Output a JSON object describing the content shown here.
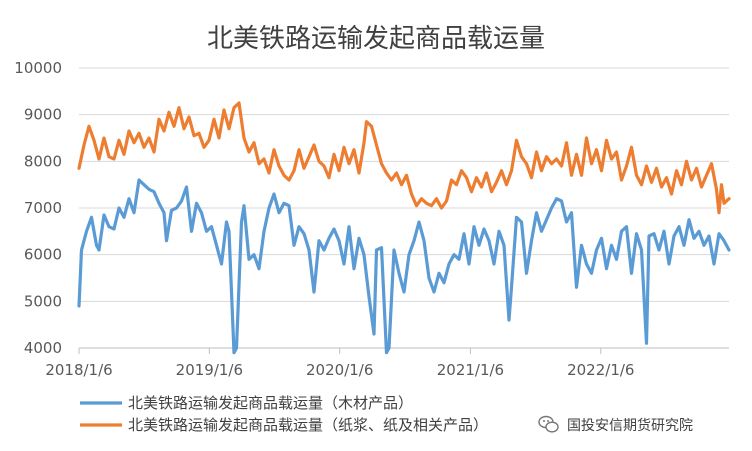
{
  "chart_data": {
    "type": "line",
    "title": "北美铁路运输发起商品载运量",
    "x_ticks": [
      "2018/1/6",
      "2019/1/6",
      "2020/1/6",
      "2021/1/6",
      "2022/1/6"
    ],
    "y_ticks": [
      "10000",
      "9000",
      "8000",
      "7000",
      "6000",
      "5000",
      "4000"
    ],
    "ylim": [
      4000,
      10000
    ],
    "xlim": [
      "2018/1/6",
      "2022/12/31"
    ],
    "grid": true,
    "legend_position": "bottom",
    "series": [
      {
        "name": "北美铁路运输发起商品载运量（木材产品）",
        "color": "#5b9bd5",
        "points": [
          [
            "2018/1/6",
            4900
          ],
          [
            "2018/1/13",
            6100
          ],
          [
            "2018/1/27",
            6500
          ],
          [
            "2018/2/10",
            6800
          ],
          [
            "2018/2/24",
            6200
          ],
          [
            "2018/3/3",
            6100
          ],
          [
            "2018/3/17",
            6850
          ],
          [
            "2018/3/31",
            6600
          ],
          [
            "2018/4/14",
            6550
          ],
          [
            "2018/4/28",
            7000
          ],
          [
            "2018/5/12",
            6800
          ],
          [
            "2018/5/26",
            7200
          ],
          [
            "2018/6/9",
            6900
          ],
          [
            "2018/6/23",
            7600
          ],
          [
            "2018/7/7",
            7500
          ],
          [
            "2018/7/21",
            7400
          ],
          [
            "2018/8/4",
            7350
          ],
          [
            "2018/8/18",
            7100
          ],
          [
            "2018/9/1",
            6900
          ],
          [
            "2018/9/8",
            6300
          ],
          [
            "2018/9/22",
            6950
          ],
          [
            "2018/10/6",
            7000
          ],
          [
            "2018/10/20",
            7150
          ],
          [
            "2018/11/3",
            7450
          ],
          [
            "2018/11/17",
            6500
          ],
          [
            "2018/12/1",
            7100
          ],
          [
            "2018/12/15",
            6900
          ],
          [
            "2018/12/29",
            6500
          ],
          [
            "2019/1/12",
            6600
          ],
          [
            "2019/1/26",
            6200
          ],
          [
            "2019/2/9",
            5800
          ],
          [
            "2019/2/23",
            6700
          ],
          [
            "2019/3/2",
            6500
          ],
          [
            "2019/3/16",
            3900
          ],
          [
            "2019/3/23",
            4000
          ],
          [
            "2019/4/6",
            6700
          ],
          [
            "2019/4/13",
            7050
          ],
          [
            "2019/4/27",
            5900
          ],
          [
            "2019/5/11",
            6000
          ],
          [
            "2019/5/25",
            5700
          ],
          [
            "2019/6/8",
            6500
          ],
          [
            "2019/6/22",
            7000
          ],
          [
            "2019/7/6",
            7300
          ],
          [
            "2019/7/20",
            6900
          ],
          [
            "2019/8/3",
            7100
          ],
          [
            "2019/8/17",
            7050
          ],
          [
            "2019/8/31",
            6200
          ],
          [
            "2019/9/14",
            6600
          ],
          [
            "2019/9/28",
            6450
          ],
          [
            "2019/10/12",
            6100
          ],
          [
            "2019/10/26",
            5200
          ],
          [
            "2019/11/9",
            6300
          ],
          [
            "2019/11/23",
            6100
          ],
          [
            "2019/12/7",
            6350
          ],
          [
            "2019/12/21",
            6550
          ],
          [
            "2020/1/4",
            6300
          ],
          [
            "2020/1/18",
            5800
          ],
          [
            "2020/2/1",
            6600
          ],
          [
            "2020/2/15",
            5700
          ],
          [
            "2020/2/29",
            6350
          ],
          [
            "2020/3/14",
            6000
          ],
          [
            "2020/3/28",
            5100
          ],
          [
            "2020/4/11",
            4300
          ],
          [
            "2020/4/18",
            6100
          ],
          [
            "2020/5/2",
            6150
          ],
          [
            "2020/5/16",
            3900
          ],
          [
            "2020/5/23",
            4000
          ],
          [
            "2020/6/6",
            6100
          ],
          [
            "2020/6/20",
            5600
          ],
          [
            "2020/7/4",
            5200
          ],
          [
            "2020/7/18",
            6000
          ],
          [
            "2020/8/1",
            6300
          ],
          [
            "2020/8/15",
            6700
          ],
          [
            "2020/8/29",
            6300
          ],
          [
            "2020/9/12",
            5500
          ],
          [
            "2020/9/26",
            5200
          ],
          [
            "2020/10/10",
            5600
          ],
          [
            "2020/10/24",
            5400
          ],
          [
            "2020/11/7",
            5800
          ],
          [
            "2020/11/21",
            6000
          ],
          [
            "2020/12/5",
            5900
          ],
          [
            "2020/12/19",
            6450
          ],
          [
            "2021/1/2",
            5800
          ],
          [
            "2021/1/16",
            6600
          ],
          [
            "2021/1/30",
            6200
          ],
          [
            "2021/2/13",
            6550
          ],
          [
            "2021/2/27",
            6300
          ],
          [
            "2021/3/13",
            5800
          ],
          [
            "2021/3/27",
            6500
          ],
          [
            "2021/4/10",
            6200
          ],
          [
            "2021/4/24",
            4600
          ],
          [
            "2021/5/1",
            5300
          ],
          [
            "2021/5/15",
            6800
          ],
          [
            "2021/5/29",
            6700
          ],
          [
            "2021/6/12",
            5600
          ],
          [
            "2021/6/26",
            6300
          ],
          [
            "2021/7/10",
            6900
          ],
          [
            "2021/7/24",
            6500
          ],
          [
            "2021/8/7",
            6750
          ],
          [
            "2021/8/21",
            7000
          ],
          [
            "2021/9/4",
            7200
          ],
          [
            "2021/9/18",
            7150
          ],
          [
            "2021/10/2",
            6700
          ],
          [
            "2021/10/16",
            6900
          ],
          [
            "2021/10/30",
            5300
          ],
          [
            "2021/11/13",
            6200
          ],
          [
            "2021/11/27",
            5800
          ],
          [
            "2021/12/11",
            5600
          ],
          [
            "2021/12/25",
            6100
          ],
          [
            "2022/1/8",
            6350
          ],
          [
            "2022/1/22",
            5700
          ],
          [
            "2022/2/5",
            6200
          ],
          [
            "2022/2/19",
            5900
          ],
          [
            "2022/3/5",
            6500
          ],
          [
            "2022/3/19",
            6600
          ],
          [
            "2022/4/2",
            5600
          ],
          [
            "2022/4/16",
            6450
          ],
          [
            "2022/4/30",
            6100
          ],
          [
            "2022/5/14",
            4100
          ],
          [
            "2022/5/21",
            6400
          ],
          [
            "2022/6/4",
            6450
          ],
          [
            "2022/6/18",
            6100
          ],
          [
            "2022/7/2",
            6500
          ],
          [
            "2022/7/16",
            5800
          ],
          [
            "2022/7/30",
            6400
          ],
          [
            "2022/8/13",
            6600
          ],
          [
            "2022/8/27",
            6200
          ],
          [
            "2022/9/10",
            6750
          ],
          [
            "2022/9/24",
            6350
          ],
          [
            "2022/10/8",
            6500
          ],
          [
            "2022/10/22",
            6200
          ],
          [
            "2022/11/5",
            6400
          ],
          [
            "2022/11/19",
            5800
          ],
          [
            "2022/12/3",
            6450
          ],
          [
            "2022/12/17",
            6300
          ],
          [
            "2022/12/31",
            6100
          ]
        ]
      },
      {
        "name": "北美铁路运输发起商品载运量（纸浆、纸及相关产品）",
        "color": "#ed7d31",
        "points": [
          [
            "2018/1/6",
            7850
          ],
          [
            "2018/1/20",
            8350
          ],
          [
            "2018/2/3",
            8750
          ],
          [
            "2018/2/17",
            8450
          ],
          [
            "2018/3/3",
            8050
          ],
          [
            "2018/3/17",
            8500
          ],
          [
            "2018/3/31",
            8100
          ],
          [
            "2018/4/14",
            8050
          ],
          [
            "2018/4/28",
            8450
          ],
          [
            "2018/5/12",
            8150
          ],
          [
            "2018/5/26",
            8650
          ],
          [
            "2018/6/9",
            8400
          ],
          [
            "2018/6/23",
            8600
          ],
          [
            "2018/7/7",
            8300
          ],
          [
            "2018/7/21",
            8500
          ],
          [
            "2018/8/4",
            8200
          ],
          [
            "2018/8/18",
            8900
          ],
          [
            "2018/9/1",
            8650
          ],
          [
            "2018/9/15",
            9050
          ],
          [
            "2018/9/29",
            8750
          ],
          [
            "2018/10/13",
            9150
          ],
          [
            "2018/10/27",
            8700
          ],
          [
            "2018/11/10",
            8950
          ],
          [
            "2018/11/24",
            8550
          ],
          [
            "2018/12/8",
            8600
          ],
          [
            "2018/12/22",
            8300
          ],
          [
            "2019/1/5",
            8450
          ],
          [
            "2019/1/19",
            8900
          ],
          [
            "2019/2/2",
            8500
          ],
          [
            "2019/2/16",
            9100
          ],
          [
            "2019/3/2",
            8700
          ],
          [
            "2019/3/16",
            9150
          ],
          [
            "2019/3/30",
            9250
          ],
          [
            "2019/4/13",
            8500
          ],
          [
            "2019/4/27",
            8200
          ],
          [
            "2019/5/11",
            8400
          ],
          [
            "2019/5/25",
            7950
          ],
          [
            "2019/6/8",
            8050
          ],
          [
            "2019/6/22",
            7750
          ],
          [
            "2019/7/6",
            8250
          ],
          [
            "2019/7/20",
            7900
          ],
          [
            "2019/8/3",
            7700
          ],
          [
            "2019/8/17",
            7600
          ],
          [
            "2019/8/31",
            7800
          ],
          [
            "2019/9/14",
            8250
          ],
          [
            "2019/9/28",
            7850
          ],
          [
            "2019/10/12",
            8100
          ],
          [
            "2019/10/26",
            8350
          ],
          [
            "2019/11/9",
            8000
          ],
          [
            "2019/11/23",
            7900
          ],
          [
            "2019/12/7",
            7650
          ],
          [
            "2019/12/21",
            8150
          ],
          [
            "2020/1/4",
            7800
          ],
          [
            "2020/1/18",
            8300
          ],
          [
            "2020/2/1",
            7950
          ],
          [
            "2020/2/15",
            8250
          ],
          [
            "2020/2/29",
            7750
          ],
          [
            "2020/3/14",
            8400
          ],
          [
            "2020/3/21",
            8850
          ],
          [
            "2020/4/4",
            8750
          ],
          [
            "2020/4/18",
            8350
          ],
          [
            "2020/5/2",
            7950
          ],
          [
            "2020/5/16",
            7750
          ],
          [
            "2020/5/30",
            7600
          ],
          [
            "2020/6/13",
            7750
          ],
          [
            "2020/6/27",
            7500
          ],
          [
            "2020/7/11",
            7700
          ],
          [
            "2020/7/25",
            7300
          ],
          [
            "2020/8/8",
            7050
          ],
          [
            "2020/8/22",
            7200
          ],
          [
            "2020/9/5",
            7100
          ],
          [
            "2020/9/19",
            7050
          ],
          [
            "2020/10/3",
            7200
          ],
          [
            "2020/10/17",
            7000
          ],
          [
            "2020/10/31",
            7150
          ],
          [
            "2020/11/14",
            7600
          ],
          [
            "2020/11/28",
            7500
          ],
          [
            "2020/12/12",
            7800
          ],
          [
            "2020/12/26",
            7650
          ],
          [
            "2021/1/9",
            7350
          ],
          [
            "2021/1/23",
            7650
          ],
          [
            "2021/2/6",
            7450
          ],
          [
            "2021/2/20",
            7750
          ],
          [
            "2021/3/6",
            7350
          ],
          [
            "2021/3/20",
            7550
          ],
          [
            "2021/4/3",
            7800
          ],
          [
            "2021/4/17",
            7500
          ],
          [
            "2021/5/1",
            7800
          ],
          [
            "2021/5/15",
            8450
          ],
          [
            "2021/5/29",
            8100
          ],
          [
            "2021/6/12",
            7950
          ],
          [
            "2021/6/26",
            7650
          ],
          [
            "2021/7/10",
            8200
          ],
          [
            "2021/7/24",
            7800
          ],
          [
            "2021/8/7",
            8100
          ],
          [
            "2021/8/21",
            7950
          ],
          [
            "2021/9/4",
            8050
          ],
          [
            "2021/9/18",
            7900
          ],
          [
            "2021/10/2",
            8400
          ],
          [
            "2021/10/16",
            7700
          ],
          [
            "2021/10/30",
            8150
          ],
          [
            "2021/11/13",
            7700
          ],
          [
            "2021/11/27",
            8500
          ],
          [
            "2021/12/11",
            7950
          ],
          [
            "2021/12/25",
            8250
          ],
          [
            "2022/1/8",
            7800
          ],
          [
            "2022/1/22",
            8450
          ],
          [
            "2022/2/5",
            8050
          ],
          [
            "2022/2/19",
            8200
          ],
          [
            "2022/3/5",
            7600
          ],
          [
            "2022/3/19",
            7900
          ],
          [
            "2022/4/2",
            8300
          ],
          [
            "2022/4/16",
            7700
          ],
          [
            "2022/4/30",
            7500
          ],
          [
            "2022/5/14",
            7900
          ],
          [
            "2022/5/28",
            7550
          ],
          [
            "2022/6/11",
            7850
          ],
          [
            "2022/6/25",
            7450
          ],
          [
            "2022/7/9",
            7650
          ],
          [
            "2022/7/23",
            7300
          ],
          [
            "2022/8/6",
            7800
          ],
          [
            "2022/8/20",
            7500
          ],
          [
            "2022/9/3",
            8000
          ],
          [
            "2022/9/17",
            7600
          ],
          [
            "2022/10/1",
            7850
          ],
          [
            "2022/10/15",
            7450
          ],
          [
            "2022/10/29",
            7700
          ],
          [
            "2022/11/12",
            7950
          ],
          [
            "2022/11/26",
            7400
          ],
          [
            "2022/12/3",
            6900
          ],
          [
            "2022/12/10",
            7500
          ],
          [
            "2022/12/17",
            7100
          ],
          [
            "2022/12/31",
            7200
          ]
        ]
      }
    ]
  },
  "watermark": "国投安信期货研究院",
  "watermark_icon": "wechat-icon"
}
